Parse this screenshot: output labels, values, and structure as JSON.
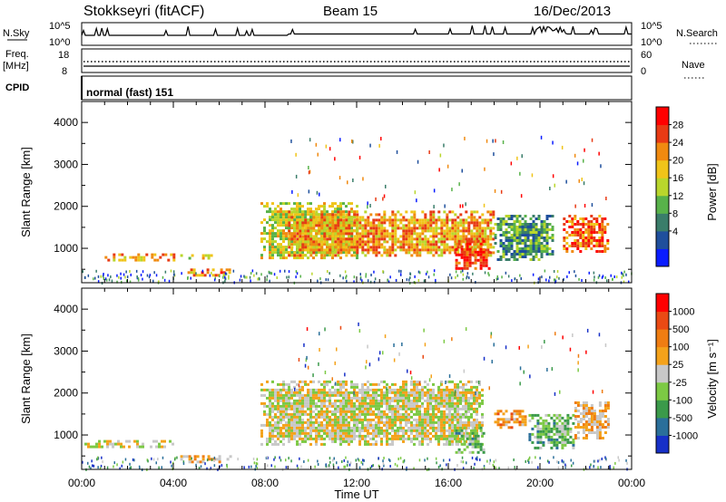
{
  "header": {
    "station": "Stokkseyri (fitACF)",
    "beam": "Beam 15",
    "date": "16/Dec/2013"
  },
  "time_axis": {
    "label": "Time UT",
    "ticks": [
      "00:00",
      "04:00",
      "08:00",
      "12:00",
      "16:00",
      "20:00",
      "00:00"
    ]
  },
  "top_panels": {
    "nsky_label": "N.Sky",
    "nsky_ticks": [
      "10^5",
      "10^0"
    ],
    "nsearch_label": "N.Search",
    "nsearch_ticks": [
      "10^5",
      "10^0"
    ],
    "freq_label": "Freq.",
    "freq_unit": "[MHz]",
    "freq_ticks": [
      "18",
      "8"
    ],
    "nave_label": "Nave",
    "nave_ticks": [
      "60",
      "0"
    ],
    "cpid_label": "CPID",
    "cpid_value": "normal (fast) 151"
  },
  "power_panel": {
    "ylabel": "Slant Range [km]",
    "yticks": [
      "4000",
      "3000",
      "2000",
      "1000"
    ],
    "colorbar_label": "Power [dB]",
    "colorbar_ticks": [
      "28",
      "24",
      "20",
      "16",
      "12",
      "8",
      "4"
    ],
    "colors": [
      "#0a1cff",
      "#1f4f9c",
      "#3a7d6a",
      "#58b24a",
      "#b9d62c",
      "#f0c419",
      "#f08a10",
      "#e83a14",
      "#ff0000"
    ]
  },
  "velocity_panel": {
    "ylabel": "Slant Range [km]",
    "yticks": [
      "4000",
      "3000",
      "2000",
      "1000"
    ],
    "colorbar_label": "Velocity [m s⁻¹]",
    "colorbar_ticks": [
      "1000",
      "500",
      "100",
      "25",
      "-25",
      "-100",
      "-500",
      "-1000"
    ],
    "colors": [
      "#1730c8",
      "#2a6f9a",
      "#3b9a4a",
      "#7cc944",
      "#c8c8c8",
      "#f4a21a",
      "#ef7d12",
      "#ea4a14",
      "#ff0000"
    ]
  },
  "chart_data": [
    {
      "type": "heatmap",
      "title": "Power",
      "xlabel": "Time UT",
      "ylabel": "Slant Range [km]",
      "xlim": [
        0,
        24
      ],
      "ylim": [
        180,
        4500
      ],
      "clim": [
        0,
        30
      ],
      "regions": [
        {
          "t": [
            1.0,
            4.0
          ],
          "r": [
            750,
            880
          ],
          "value": 20
        },
        {
          "t": [
            4.3,
            5.7
          ],
          "r": [
            740,
            860
          ],
          "value": 18
        },
        {
          "t": [
            4.5,
            6.5
          ],
          "r": [
            380,
            520
          ],
          "value": 22
        },
        {
          "t": [
            7.8,
            12.0
          ],
          "r": [
            800,
            2100
          ],
          "value": 16
        },
        {
          "t": [
            9.0,
            18.0
          ],
          "r": [
            850,
            1900
          ],
          "value": 20
        },
        {
          "t": [
            16.3,
            17.8
          ],
          "r": [
            500,
            1200
          ],
          "value": 26
        },
        {
          "t": [
            18.0,
            20.5
          ],
          "r": [
            700,
            1800
          ],
          "value": 10
        },
        {
          "t": [
            21.0,
            23.0
          ],
          "r": [
            900,
            1800
          ],
          "value": 24
        }
      ]
    },
    {
      "type": "heatmap",
      "title": "Velocity",
      "xlabel": "Time UT",
      "ylabel": "Slant Range [km]",
      "xlim": [
        0,
        24
      ],
      "ylim": [
        180,
        4500
      ],
      "clim": [
        -1000,
        1000
      ],
      "regions": [
        {
          "t": [
            0.0,
            4.0
          ],
          "r": [
            750,
            880
          ],
          "value": 0
        },
        {
          "t": [
            4.3,
            6.5
          ],
          "r": [
            380,
            520
          ],
          "value": 200
        },
        {
          "t": [
            7.8,
            17.5
          ],
          "r": [
            800,
            2300
          ],
          "value": 0
        },
        {
          "t": [
            16.3,
            17.5
          ],
          "r": [
            600,
            1200
          ],
          "value": -300
        },
        {
          "t": [
            18.0,
            19.5
          ],
          "r": [
            1200,
            1600
          ],
          "value": 300
        },
        {
          "t": [
            19.5,
            21.5
          ],
          "r": [
            700,
            1500
          ],
          "value": -300
        },
        {
          "t": [
            21.5,
            23.0
          ],
          "r": [
            900,
            1800
          ],
          "value": 200
        }
      ]
    }
  ]
}
